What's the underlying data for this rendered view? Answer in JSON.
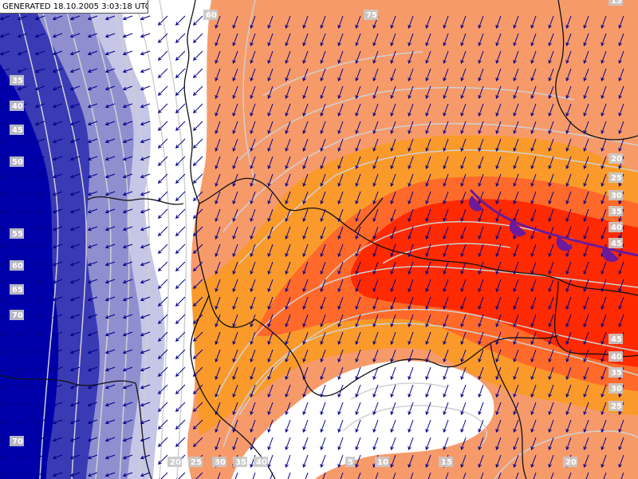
{
  "header": {
    "generated": "GENERATED 18.10.2005 3:03:18 UTC"
  },
  "colors": {
    "blue_dark": "#0000aa",
    "blue_mid": "#3a3ab4",
    "blue_light": "#8f8fd0",
    "blue_pale": "#c6c6e6",
    "white": "#ffffff",
    "orange_light": "#f79a6a",
    "orange": "#fa9a2a",
    "orange_red": "#ff6a2a",
    "red": "#ff2a00",
    "isoline": "#d0d0d0",
    "border": "#111111",
    "front": "#6a1a9a",
    "arrow": "#00008a"
  },
  "contour_labels": [
    {
      "id": "l-top-60",
      "text": "60"
    },
    {
      "id": "l-top-75",
      "text": "75"
    },
    {
      "id": "l-tr-15",
      "text": "15"
    },
    {
      "id": "l-left-35",
      "text": "35"
    },
    {
      "id": "l-left-40",
      "text": "40"
    },
    {
      "id": "l-left-45",
      "text": "45"
    },
    {
      "id": "l-left-50",
      "text": "50"
    },
    {
      "id": "l-left-55",
      "text": "55"
    },
    {
      "id": "l-left-60",
      "text": "60"
    },
    {
      "id": "l-left-65",
      "text": "65"
    },
    {
      "id": "l-left-70",
      "text": "70"
    },
    {
      "id": "l-left-70b",
      "text": "70"
    },
    {
      "id": "l-r-20",
      "text": "20"
    },
    {
      "id": "l-r-25",
      "text": "25"
    },
    {
      "id": "l-r-30",
      "text": "30"
    },
    {
      "id": "l-r-35",
      "text": "35"
    },
    {
      "id": "l-r-40",
      "text": "40"
    },
    {
      "id": "l-r-45",
      "text": "45"
    },
    {
      "id": "l-r-45b",
      "text": "45"
    },
    {
      "id": "l-r-40b",
      "text": "40"
    },
    {
      "id": "l-r-35b",
      "text": "35"
    },
    {
      "id": "l-r-30b",
      "text": "30"
    },
    {
      "id": "l-r-25b",
      "text": "25"
    },
    {
      "id": "l-b-20",
      "text": "20"
    },
    {
      "id": "l-b-25",
      "text": "25"
    },
    {
      "id": "l-b-30",
      "text": "30"
    },
    {
      "id": "l-b-35",
      "text": "35"
    },
    {
      "id": "l-b-40",
      "text": "40"
    },
    {
      "id": "l-b-5",
      "text": "5"
    },
    {
      "id": "l-b-10",
      "text": "10"
    },
    {
      "id": "l-b-15",
      "text": "15"
    },
    {
      "id": "l-b-20b",
      "text": "20"
    }
  ]
}
